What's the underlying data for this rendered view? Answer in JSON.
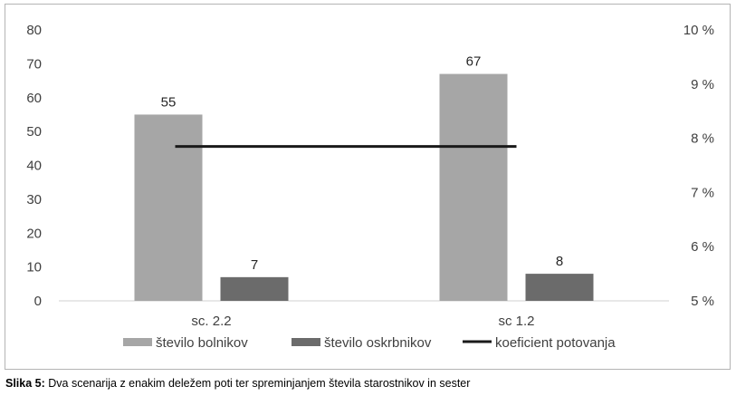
{
  "chart_data": {
    "type": "bar",
    "categories": [
      "sc. 2.2",
      "sc 1.2"
    ],
    "series": [
      {
        "name": "število bolnikov",
        "values": [
          55,
          67
        ],
        "color": "#a6a6a6",
        "axis": "left"
      },
      {
        "name": "število oskrbnikov",
        "values": [
          7,
          8
        ],
        "color": "#6b6b6b",
        "axis": "left"
      }
    ],
    "line_series": {
      "name": "koeficient potovanja",
      "values": [
        7.85,
        7.85
      ],
      "color": "#1a1a1a",
      "axis": "right"
    },
    "y_left": {
      "min": 0,
      "max": 80,
      "step": 10,
      "ticks": [
        "0",
        "10",
        "20",
        "30",
        "40",
        "50",
        "60",
        "70",
        "80"
      ]
    },
    "y_right": {
      "min": 5,
      "max": 10,
      "step": 1,
      "ticks": [
        "5 %",
        "6 %",
        "7 %",
        "8 %",
        "9 %",
        "10 %"
      ]
    },
    "legend_position": "bottom",
    "grid": false
  },
  "caption": {
    "label": "Slika 5:",
    "text": " Dva scenarija z enakim deležem poti ter spreminjanjem števila starostnikov in sester"
  }
}
